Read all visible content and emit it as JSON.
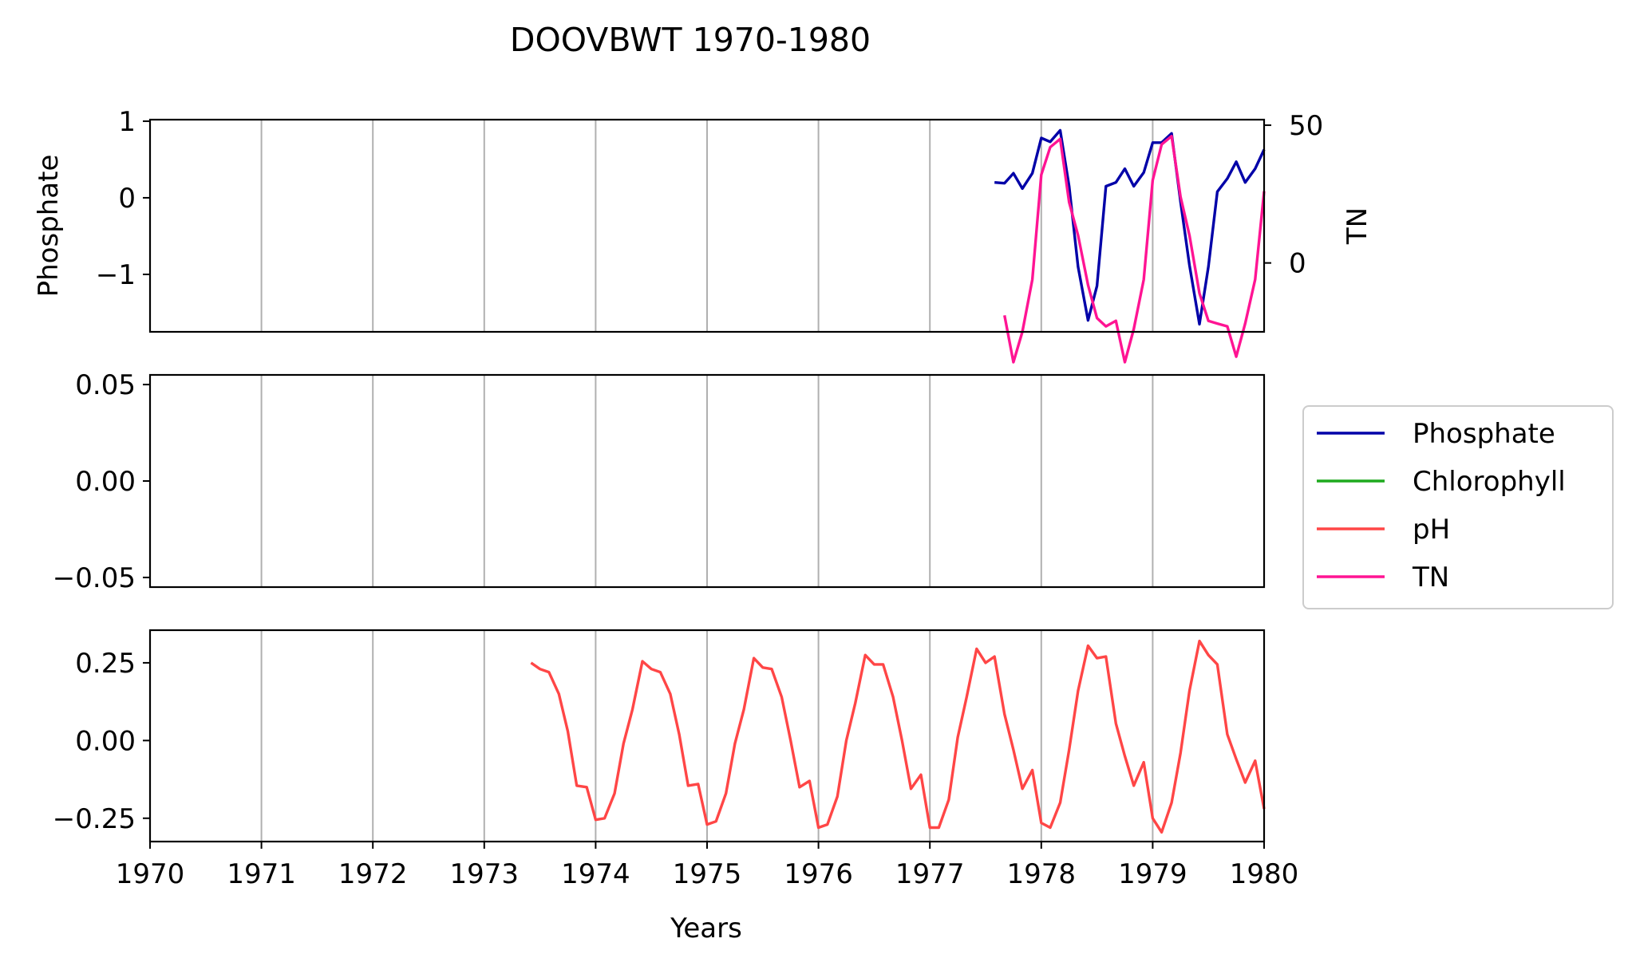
{
  "chart_data": {
    "title": "DOOVBWT 1970-1980",
    "xlabel": "Years",
    "x_ticks": [
      "1970",
      "1971",
      "1972",
      "1973",
      "1974",
      "1975",
      "1976",
      "1977",
      "1978",
      "1979",
      "1980"
    ],
    "xlim": [
      1970,
      1980
    ],
    "grid": "vertical",
    "legend_placement": "right",
    "legend": [
      {
        "name": "Phosphate",
        "color": "#0000a8"
      },
      {
        "name": "Chlorophyll",
        "color": "#1eaa1e"
      },
      {
        "name": "pH",
        "color": "#ff4646"
      },
      {
        "name": "TN",
        "color": "#ff1493"
      }
    ],
    "panels": [
      {
        "type": "line",
        "ylabel": "Phosphate",
        "ylim": [
          -1.75,
          1.02
        ],
        "y_ticks": [
          {
            "v": 1,
            "label": "1"
          },
          {
            "v": 0,
            "label": "0"
          },
          {
            "v": -1,
            "label": "−1"
          }
        ],
        "y2label": "TN",
        "y2lim": [
          -25,
          52
        ],
        "y2_ticks": [
          {
            "v": 50,
            "label": "50"
          },
          {
            "v": 0,
            "label": "0"
          }
        ],
        "series": [
          {
            "name": "Phosphate",
            "color": "#0000a8",
            "axis": "left",
            "x": [
              1977.58,
              1977.67,
              1977.75,
              1977.83,
              1977.92,
              1978.0,
              1978.08,
              1978.17,
              1978.25,
              1978.33,
              1978.42,
              1978.5,
              1978.58,
              1978.67,
              1978.75,
              1978.83,
              1978.92,
              1979.0,
              1979.08,
              1979.17,
              1979.25,
              1979.33,
              1979.42,
              1979.5,
              1979.58,
              1979.67,
              1979.75,
              1979.83,
              1979.92,
              1980.0
            ],
            "y": [
              0.2,
              0.19,
              0.32,
              0.12,
              0.32,
              0.78,
              0.73,
              0.88,
              0.15,
              -0.9,
              -1.6,
              -1.15,
              0.15,
              0.2,
              0.38,
              0.15,
              0.33,
              0.72,
              0.72,
              0.84,
              -0.05,
              -0.88,
              -1.65,
              -0.9,
              0.08,
              0.25,
              0.47,
              0.2,
              0.38,
              0.63
            ]
          },
          {
            "name": "TN",
            "color": "#ff1493",
            "axis": "right",
            "x": [
              1977.67,
              1977.75,
              1977.83,
              1977.92,
              1978.0,
              1978.08,
              1978.17,
              1978.25,
              1978.33,
              1978.42,
              1978.5,
              1978.58,
              1978.67,
              1978.75,
              1978.83,
              1978.92,
              1979.0,
              1979.08,
              1979.17,
              1979.25,
              1979.33,
              1979.42,
              1979.5,
              1979.58,
              1979.67,
              1979.75,
              1979.83,
              1979.92,
              1980.0
            ],
            "y": [
              -19,
              -36,
              -25,
              -6,
              32,
              42,
              45,
              22,
              10,
              -8,
              -20,
              -23,
              -21,
              -36,
              -24,
              -6,
              30,
              43,
              46,
              24,
              10,
              -11,
              -21,
              -22,
              -23,
              -34,
              -22,
              -6,
              26
            ]
          }
        ]
      },
      {
        "type": "line",
        "ylabel": "",
        "ylim": [
          -0.055,
          0.055
        ],
        "y_ticks": [
          {
            "v": 0.05,
            "label": "0.05"
          },
          {
            "v": 0,
            "label": "0.00"
          },
          {
            "v": -0.05,
            "label": "−0.05"
          }
        ],
        "series": []
      },
      {
        "type": "line",
        "ylabel": "",
        "ylim": [
          -0.325,
          0.355
        ],
        "y_ticks": [
          {
            "v": 0.25,
            "label": "0.25"
          },
          {
            "v": 0,
            "label": "0.00"
          },
          {
            "v": -0.25,
            "label": "−0.25"
          }
        ],
        "series": [
          {
            "name": "pH",
            "color": "#ff4646",
            "axis": "left",
            "x": [
              1973.42,
              1973.5,
              1973.58,
              1973.67,
              1973.75,
              1973.83,
              1973.92,
              1974.0,
              1974.08,
              1974.17,
              1974.25,
              1974.33,
              1974.42,
              1974.5,
              1974.58,
              1974.67,
              1974.75,
              1974.83,
              1974.92,
              1975.0,
              1975.08,
              1975.17,
              1975.25,
              1975.33,
              1975.42,
              1975.5,
              1975.58,
              1975.67,
              1975.75,
              1975.83,
              1975.92,
              1976.0,
              1976.08,
              1976.17,
              1976.25,
              1976.33,
              1976.42,
              1976.5,
              1976.58,
              1976.67,
              1976.75,
              1976.83,
              1976.92,
              1977.0,
              1977.08,
              1977.17,
              1977.25,
              1977.33,
              1977.42,
              1977.5,
              1977.58,
              1977.67,
              1977.75,
              1977.83,
              1977.92,
              1978.0,
              1978.08,
              1978.17,
              1978.25,
              1978.33,
              1978.42,
              1978.5,
              1978.58,
              1978.67,
              1978.75,
              1978.83,
              1978.92,
              1979.0,
              1979.08,
              1979.17,
              1979.25,
              1979.33,
              1979.42,
              1979.5,
              1979.58,
              1979.67,
              1979.75,
              1979.83,
              1979.92,
              1980.0
            ],
            "y": [
              0.25,
              0.23,
              0.22,
              0.15,
              0.03,
              -0.145,
              -0.15,
              -0.255,
              -0.25,
              -0.17,
              -0.01,
              0.1,
              0.255,
              0.23,
              0.22,
              0.15,
              0.02,
              -0.145,
              -0.14,
              -0.27,
              -0.26,
              -0.17,
              -0.01,
              0.1,
              0.265,
              0.235,
              0.23,
              0.14,
              0.0,
              -0.15,
              -0.13,
              -0.28,
              -0.27,
              -0.18,
              0.0,
              0.12,
              0.275,
              0.245,
              0.245,
              0.14,
              0.0,
              -0.155,
              -0.11,
              -0.28,
              -0.28,
              -0.19,
              0.01,
              0.14,
              0.295,
              0.25,
              0.27,
              0.085,
              -0.03,
              -0.155,
              -0.095,
              -0.265,
              -0.28,
              -0.2,
              -0.03,
              0.16,
              0.305,
              0.265,
              0.27,
              0.055,
              -0.05,
              -0.145,
              -0.07,
              -0.25,
              -0.295,
              -0.2,
              -0.04,
              0.16,
              0.32,
              0.275,
              0.245,
              0.02,
              -0.06,
              -0.135,
              -0.065,
              -0.22
            ]
          }
        ]
      }
    ]
  }
}
